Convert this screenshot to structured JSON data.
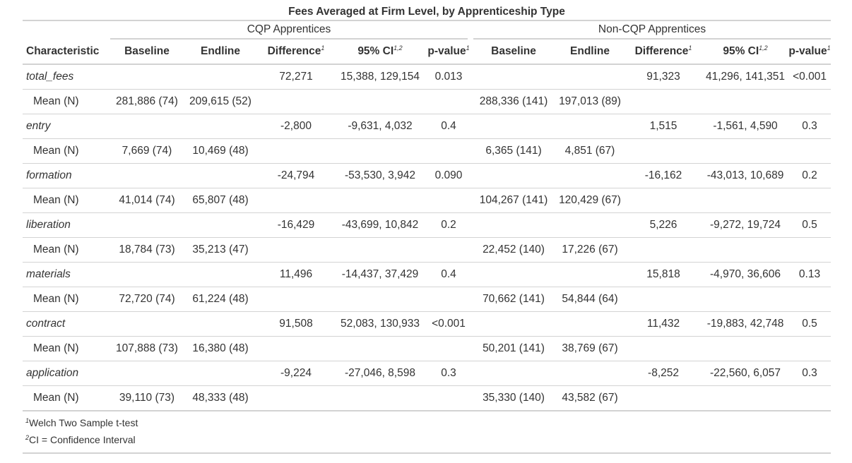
{
  "title": "Fees Averaged at Firm Level, by Apprenticeship Type",
  "spanners": {
    "cqp": "CQP Apprentices",
    "non_cqp": "Non-CQP Apprentices"
  },
  "columns": {
    "characteristic": "Characteristic",
    "baseline": "Baseline",
    "endline": "Endline",
    "difference": "Difference",
    "ci": "95% CI",
    "p_value": "p-value",
    "fn1": "1",
    "fn12": "1,2"
  },
  "rows": [
    {
      "label": "total_fees",
      "type": "var",
      "cells": [
        "",
        "",
        "72,271",
        "15,388, 129,154",
        "0.013",
        "",
        "",
        "91,323",
        "41,296, 141,351",
        "<0.001"
      ]
    },
    {
      "label": "Mean (N)",
      "type": "stat",
      "cells": [
        "281,886 (74)",
        "209,615 (52)",
        "",
        "",
        "",
        "288,336 (141)",
        "197,013 (89)",
        "",
        "",
        ""
      ]
    },
    {
      "label": "entry",
      "type": "var",
      "cells": [
        "",
        "",
        "-2,800",
        "-9,631, 4,032",
        "0.4",
        "",
        "",
        "1,515",
        "-1,561, 4,590",
        "0.3"
      ]
    },
    {
      "label": "Mean (N)",
      "type": "stat",
      "cells": [
        "7,669 (74)",
        "10,469 (48)",
        "",
        "",
        "",
        "6,365 (141)",
        "4,851 (67)",
        "",
        "",
        ""
      ]
    },
    {
      "label": "formation",
      "type": "var",
      "cells": [
        "",
        "",
        "-24,794",
        "-53,530, 3,942",
        "0.090",
        "",
        "",
        "-16,162",
        "-43,013, 10,689",
        "0.2"
      ]
    },
    {
      "label": "Mean (N)",
      "type": "stat",
      "cells": [
        "41,014 (74)",
        "65,807 (48)",
        "",
        "",
        "",
        "104,267 (141)",
        "120,429 (67)",
        "",
        "",
        ""
      ]
    },
    {
      "label": "liberation",
      "type": "var",
      "cells": [
        "",
        "",
        "-16,429",
        "-43,699, 10,842",
        "0.2",
        "",
        "",
        "5,226",
        "-9,272, 19,724",
        "0.5"
      ]
    },
    {
      "label": "Mean (N)",
      "type": "stat",
      "cells": [
        "18,784 (73)",
        "35,213 (47)",
        "",
        "",
        "",
        "22,452 (140)",
        "17,226 (67)",
        "",
        "",
        ""
      ]
    },
    {
      "label": "materials",
      "type": "var",
      "cells": [
        "",
        "",
        "11,496",
        "-14,437, 37,429",
        "0.4",
        "",
        "",
        "15,818",
        "-4,970, 36,606",
        "0.13"
      ]
    },
    {
      "label": "Mean (N)",
      "type": "stat",
      "cells": [
        "72,720 (74)",
        "61,224 (48)",
        "",
        "",
        "",
        "70,662 (141)",
        "54,844 (64)",
        "",
        "",
        ""
      ]
    },
    {
      "label": "contract",
      "type": "var",
      "cells": [
        "",
        "",
        "91,508",
        "52,083, 130,933",
        "<0.001",
        "",
        "",
        "11,432",
        "-19,883, 42,748",
        "0.5"
      ]
    },
    {
      "label": "Mean (N)",
      "type": "stat",
      "cells": [
        "107,888 (73)",
        "16,380 (48)",
        "",
        "",
        "",
        "50,201 (141)",
        "38,769 (67)",
        "",
        "",
        ""
      ]
    },
    {
      "label": "application",
      "type": "var",
      "cells": [
        "",
        "",
        "-9,224",
        "-27,046, 8,598",
        "0.3",
        "",
        "",
        "-8,252",
        "-22,560, 6,057",
        "0.3"
      ]
    },
    {
      "label": "Mean (N)",
      "type": "stat",
      "cells": [
        "39,110 (73)",
        "48,333 (48)",
        "",
        "",
        "",
        "35,330 (140)",
        "43,582 (67)",
        "",
        "",
        ""
      ]
    }
  ],
  "footnotes": [
    {
      "mark": "1",
      "text": "Welch Two Sample t-test"
    },
    {
      "mark": "2",
      "text": "CI = Confidence Interval"
    }
  ]
}
